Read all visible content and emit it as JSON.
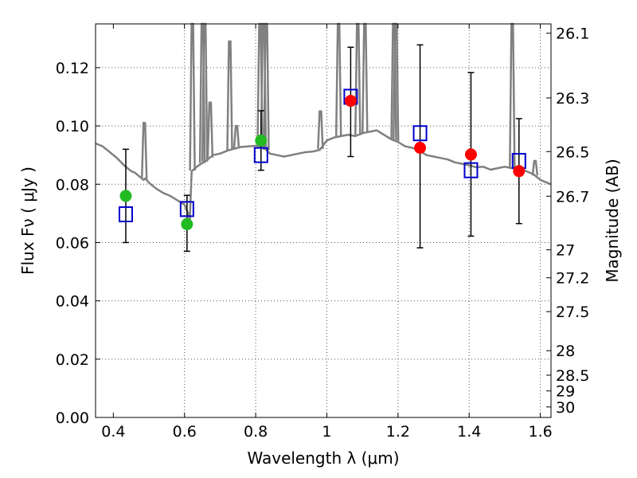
{
  "chart_data": {
    "type": "scatter",
    "xlabel": "Wavelength  λ (μm)",
    "ylabel": "Flux  Fν  ( μJy )",
    "ylabel_right": "Magnitude (AB)",
    "xlim": [
      0.35,
      1.63
    ],
    "ylim": [
      0.0,
      0.135
    ],
    "x_ticks": [
      0.4,
      0.6,
      0.8,
      1.0,
      1.2,
      1.4,
      1.6
    ],
    "x_tick_labels": [
      "0.4",
      "0.6",
      "0.8",
      "1",
      "1.2",
      "1.4",
      "1.6"
    ],
    "y_ticks": [
      0.0,
      0.02,
      0.04,
      0.06,
      0.08,
      0.1,
      0.12
    ],
    "y_tick_labels": [
      "0.00",
      "0.02",
      "0.04",
      "0.06",
      "0.08",
      "0.10",
      "0.12"
    ],
    "right_ticks": [
      {
        "label": "26.1",
        "flux": 0.1318
      },
      {
        "label": "26.3",
        "flux": 0.1096
      },
      {
        "label": "26.5",
        "flux": 0.0912
      },
      {
        "label": "26.7",
        "flux": 0.0759
      },
      {
        "label": "27",
        "flux": 0.0575
      },
      {
        "label": "27.2",
        "flux": 0.0479
      },
      {
        "label": "27.5",
        "flux": 0.0363
      },
      {
        "label": "28",
        "flux": 0.0229
      },
      {
        "label": "28.5",
        "flux": 0.0145
      },
      {
        "label": "29",
        "flux": 0.0091
      },
      {
        "label": "30",
        "flux": 0.0036
      }
    ],
    "grid": true,
    "series": [
      {
        "marker": "open-square",
        "color": "#0000cc",
        "x": [
          0.435,
          0.607,
          0.815,
          1.067,
          1.262,
          1.405,
          1.54
        ],
        "y": [
          0.0697,
          0.0715,
          0.09,
          0.11,
          0.0975,
          0.0848,
          0.088
        ]
      },
      {
        "marker": "filled-circle",
        "color": "#22bb22",
        "x": [
          0.435,
          0.607,
          0.815
        ],
        "y": [
          0.076,
          0.0663,
          0.095
        ]
      },
      {
        "marker": "filled-circle",
        "color": "#ff0000",
        "x": [
          1.067,
          1.262,
          1.405,
          1.54
        ],
        "y": [
          0.1086,
          0.0925,
          0.0902,
          0.0845
        ]
      }
    ],
    "error_bars": [
      {
        "x": 0.435,
        "low": 0.06,
        "high": 0.092
      },
      {
        "x": 0.607,
        "low": 0.057,
        "high": 0.0762
      },
      {
        "x": 0.815,
        "low": 0.0848,
        "high": 0.1052
      },
      {
        "x": 1.067,
        "low": 0.0895,
        "high": 0.127
      },
      {
        "x": 1.262,
        "low": 0.0582,
        "high": 0.1278
      },
      {
        "x": 1.405,
        "low": 0.0622,
        "high": 0.1183
      },
      {
        "x": 1.54,
        "low": 0.0665,
        "high": 0.1025
      }
    ],
    "model_spectrum": {
      "color": "#808080",
      "x": [
        0.35,
        0.37,
        0.39,
        0.41,
        0.43,
        0.45,
        0.46,
        0.47,
        0.48,
        0.485,
        0.49,
        0.5,
        0.52,
        0.54,
        0.56,
        0.58,
        0.6,
        0.61,
        0.615,
        0.62,
        0.64,
        0.66,
        0.68,
        0.7,
        0.72,
        0.74,
        0.76,
        0.78,
        0.8,
        0.82,
        0.84,
        0.86,
        0.88,
        0.9,
        0.92,
        0.94,
        0.96,
        0.98,
        1.0,
        1.02,
        1.04,
        1.06,
        1.08,
        1.1,
        1.12,
        1.14,
        1.16,
        1.18,
        1.2,
        1.22,
        1.24,
        1.26,
        1.28,
        1.3,
        1.32,
        1.34,
        1.36,
        1.38,
        1.4,
        1.42,
        1.44,
        1.46,
        1.48,
        1.5,
        1.52,
        1.54,
        1.56,
        1.58,
        1.6,
        1.63
      ],
      "y": [
        0.094,
        0.093,
        0.091,
        0.089,
        0.0865,
        0.0845,
        0.084,
        0.083,
        0.082,
        0.0815,
        0.082,
        0.0805,
        0.0785,
        0.077,
        0.076,
        0.0745,
        0.073,
        0.07,
        0.068,
        0.0845,
        0.0865,
        0.088,
        0.09,
        0.0905,
        0.0915,
        0.0922,
        0.0928,
        0.093,
        0.0932,
        0.093,
        0.0905,
        0.09,
        0.0895,
        0.09,
        0.0905,
        0.091,
        0.0912,
        0.0918,
        0.095,
        0.096,
        0.0965,
        0.097,
        0.0965,
        0.0975,
        0.098,
        0.0985,
        0.097,
        0.0955,
        0.0945,
        0.093,
        0.0925,
        0.0915,
        0.09,
        0.0895,
        0.089,
        0.0885,
        0.0875,
        0.087,
        0.0865,
        0.0858,
        0.086,
        0.085,
        0.0855,
        0.086,
        0.0855,
        0.0858,
        0.0845,
        0.0835,
        0.0815,
        0.08
      ]
    },
    "model_spikes": [
      {
        "x": 0.487,
        "y": 0.101
      },
      {
        "x": 0.622,
        "y": 0.135
      },
      {
        "x": 0.65,
        "y": 0.135
      },
      {
        "x": 0.657,
        "y": 0.135
      },
      {
        "x": 0.672,
        "y": 0.108
      },
      {
        "x": 0.727,
        "y": 0.129
      },
      {
        "x": 0.746,
        "y": 0.1
      },
      {
        "x": 0.812,
        "y": 0.135
      },
      {
        "x": 0.822,
        "y": 0.135
      },
      {
        "x": 0.83,
        "y": 0.135
      },
      {
        "x": 0.982,
        "y": 0.105
      },
      {
        "x": 1.033,
        "y": 0.135
      },
      {
        "x": 1.087,
        "y": 0.135
      },
      {
        "x": 1.107,
        "y": 0.135
      },
      {
        "x": 1.188,
        "y": 0.135
      },
      {
        "x": 1.194,
        "y": 0.135
      },
      {
        "x": 1.521,
        "y": 0.135
      },
      {
        "x": 1.585,
        "y": 0.088
      }
    ]
  }
}
